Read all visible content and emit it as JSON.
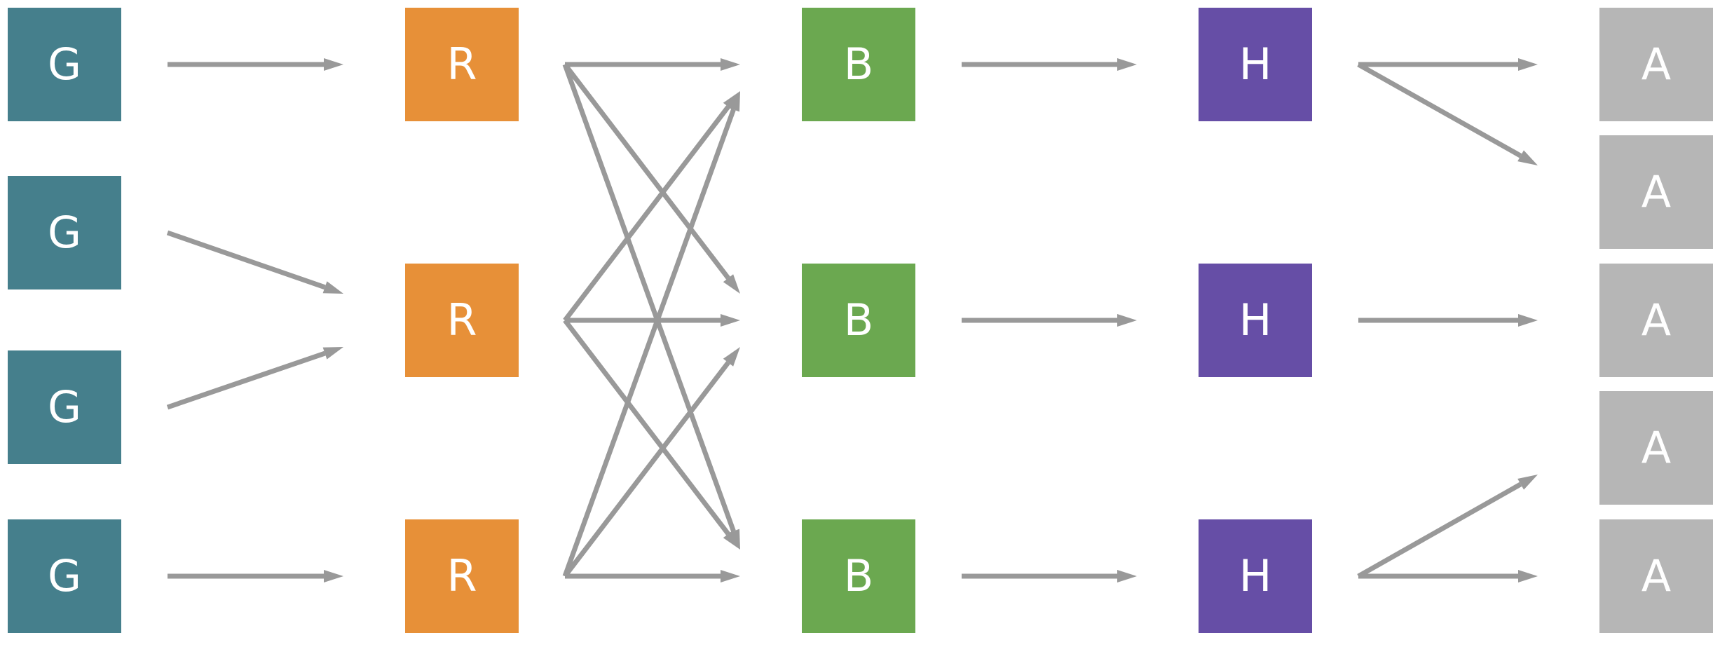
{
  "colors": {
    "G": "#457f8c",
    "R": "#e79038",
    "B": "#6ba850",
    "H": "#664ea6",
    "A": "#b6b6b6",
    "edge": "#999999"
  },
  "columns": [
    {
      "key": "G",
      "label": "G",
      "count": 4
    },
    {
      "key": "R",
      "label": "R",
      "count": 3
    },
    {
      "key": "B",
      "label": "B",
      "count": 3
    },
    {
      "key": "H",
      "label": "H",
      "count": 3
    },
    {
      "key": "A",
      "label": "A",
      "count": 5
    }
  ],
  "edges": [
    {
      "from": [
        "G",
        0
      ],
      "to": [
        "R",
        0
      ]
    },
    {
      "from": [
        "G",
        1
      ],
      "to": [
        "R",
        1
      ]
    },
    {
      "from": [
        "G",
        2
      ],
      "to": [
        "R",
        1
      ]
    },
    {
      "from": [
        "G",
        3
      ],
      "to": [
        "R",
        2
      ]
    },
    {
      "from": [
        "R",
        0
      ],
      "to": [
        "B",
        0
      ]
    },
    {
      "from": [
        "R",
        0
      ],
      "to": [
        "B",
        1
      ]
    },
    {
      "from": [
        "R",
        0
      ],
      "to": [
        "B",
        2
      ]
    },
    {
      "from": [
        "R",
        1
      ],
      "to": [
        "B",
        0
      ]
    },
    {
      "from": [
        "R",
        1
      ],
      "to": [
        "B",
        1
      ]
    },
    {
      "from": [
        "R",
        1
      ],
      "to": [
        "B",
        2
      ]
    },
    {
      "from": [
        "R",
        2
      ],
      "to": [
        "B",
        0
      ]
    },
    {
      "from": [
        "R",
        2
      ],
      "to": [
        "B",
        1
      ]
    },
    {
      "from": [
        "R",
        2
      ],
      "to": [
        "B",
        2
      ]
    },
    {
      "from": [
        "B",
        0
      ],
      "to": [
        "H",
        0
      ]
    },
    {
      "from": [
        "B",
        1
      ],
      "to": [
        "H",
        1
      ]
    },
    {
      "from": [
        "B",
        2
      ],
      "to": [
        "H",
        2
      ]
    },
    {
      "from": [
        "H",
        0
      ],
      "to": [
        "A",
        0
      ]
    },
    {
      "from": [
        "H",
        0
      ],
      "to": [
        "A",
        1
      ]
    },
    {
      "from": [
        "H",
        1
      ],
      "to": [
        "A",
        2
      ]
    },
    {
      "from": [
        "H",
        2
      ],
      "to": [
        "A",
        3
      ]
    },
    {
      "from": [
        "H",
        2
      ],
      "to": [
        "A",
        4
      ]
    }
  ]
}
